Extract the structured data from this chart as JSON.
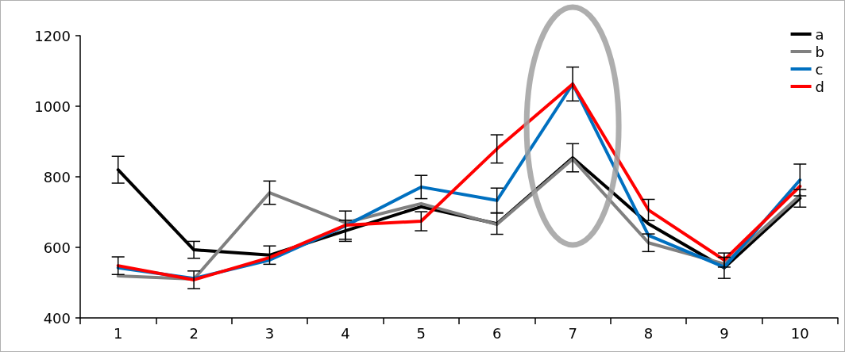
{
  "chart_data": {
    "type": "line",
    "categories": [
      "1",
      "2",
      "3",
      "4",
      "5",
      "6",
      "7",
      "8",
      "9",
      "10"
    ],
    "series": [
      {
        "name": "a",
        "color": "#000000",
        "values": [
          820,
          593,
          578,
          647,
          715,
          667,
          854,
          667,
          542,
          739
        ],
        "errors": [
          38,
          24,
          26,
          30,
          null,
          30,
          40,
          null,
          30,
          25
        ]
      },
      {
        "name": "b",
        "color": "#808080",
        "values": [
          519,
          510,
          755,
          670,
          724,
          665,
          850,
          613,
          553,
          747
        ],
        "errors": [
          null,
          null,
          33,
          null,
          null,
          null,
          null,
          25,
          null,
          null
        ]
      },
      {
        "name": "c",
        "color": "#0070c0",
        "values": [
          542,
          512,
          564,
          661,
          771,
          733,
          1063,
          634,
          544,
          791
        ],
        "errors": [
          null,
          null,
          null,
          null,
          33,
          35,
          null,
          null,
          null,
          45
        ]
      },
      {
        "name": "d",
        "color": "#ff0000",
        "values": [
          548,
          508,
          571,
          663,
          674,
          879,
          1063,
          706,
          564,
          773
        ],
        "errors": [
          25,
          25,
          null,
          40,
          27,
          40,
          48,
          30,
          20,
          null
        ]
      }
    ],
    "ylim": [
      400,
      1200
    ],
    "yticks": [
      400,
      600,
      800,
      1000,
      1200
    ],
    "grid": false,
    "legend": "top right",
    "marker": "none",
    "line_style": "solid"
  }
}
